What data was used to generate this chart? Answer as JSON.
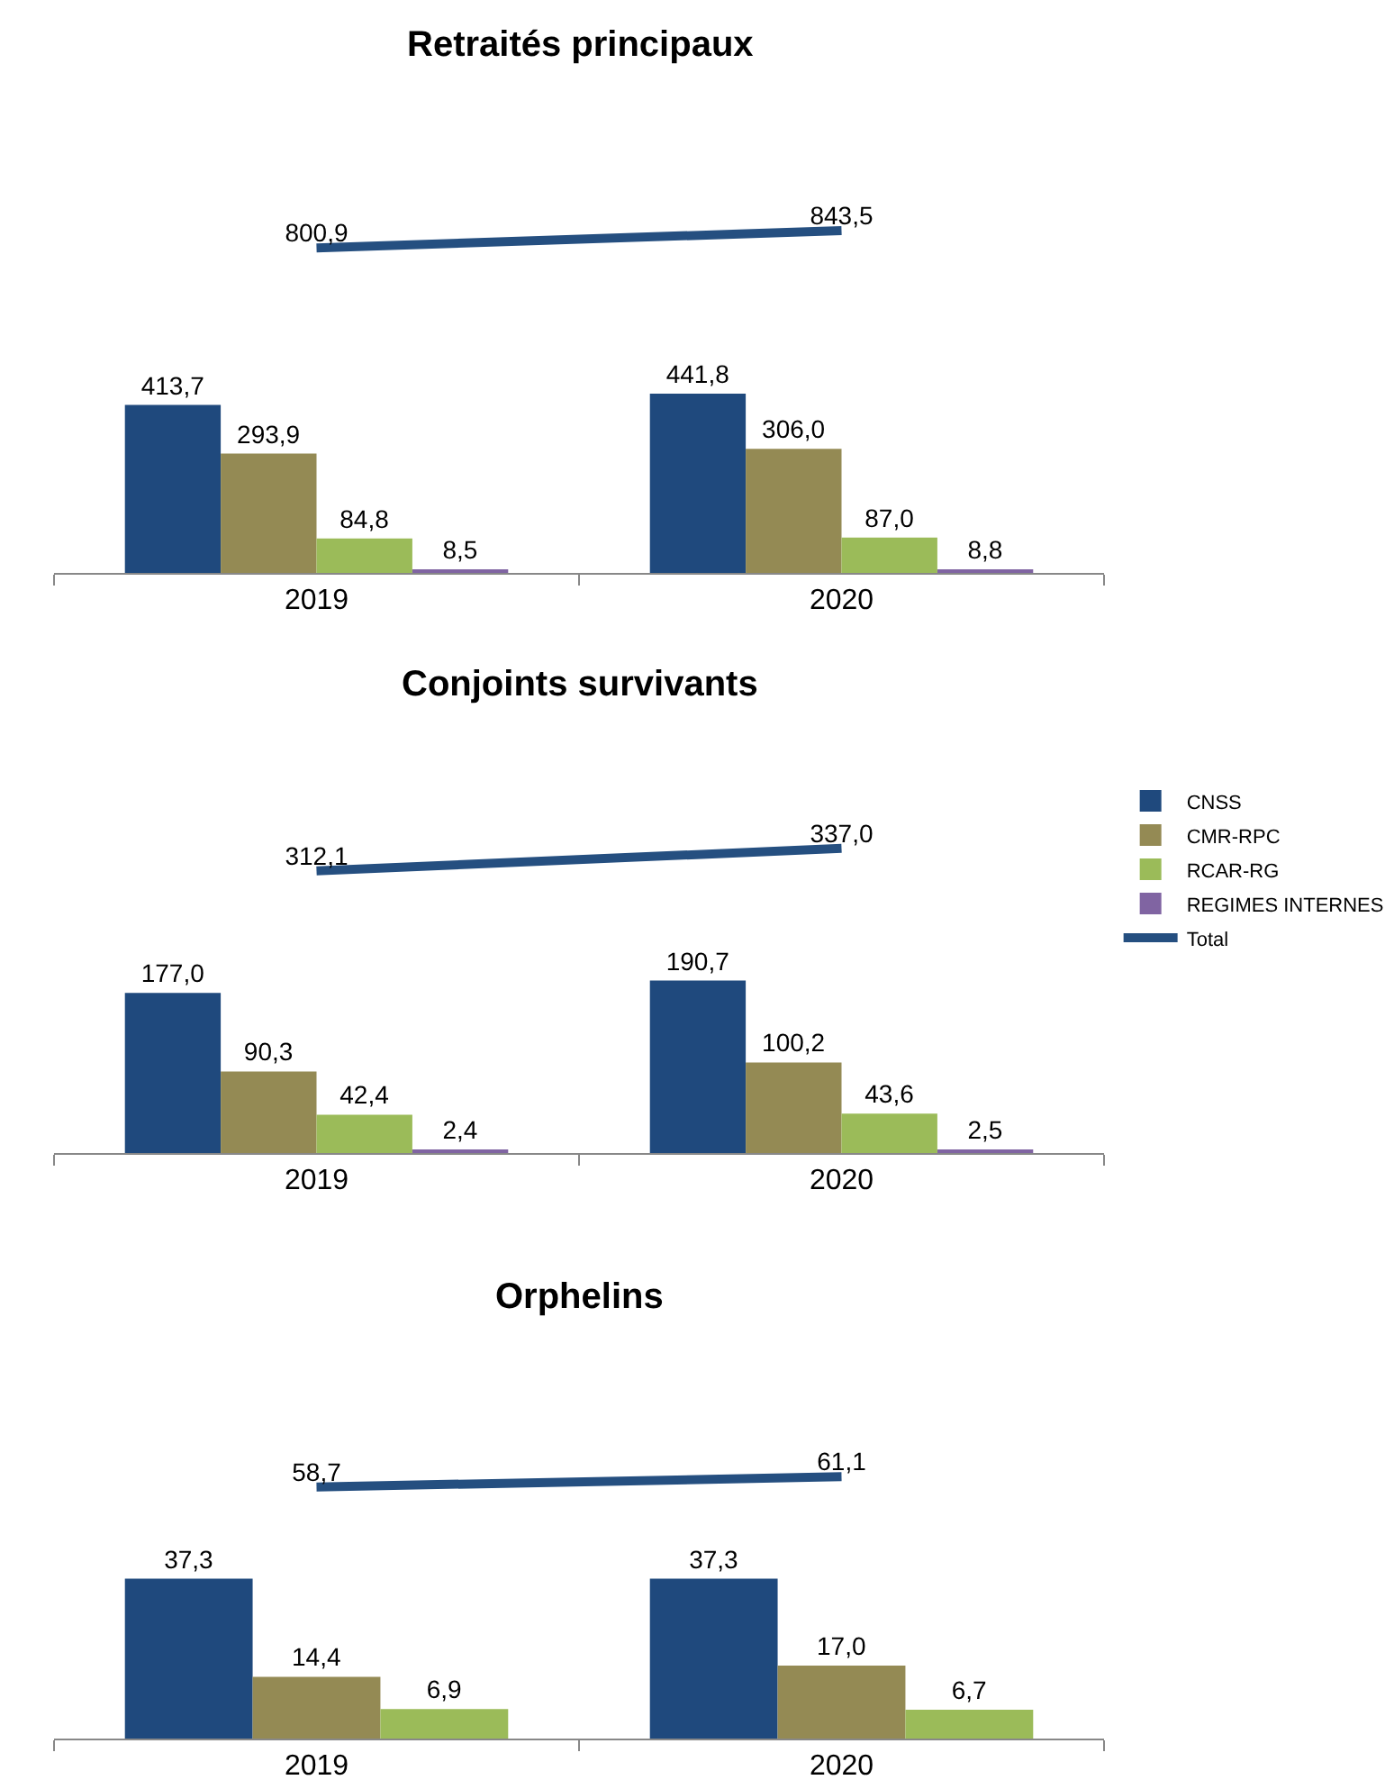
{
  "chart_data": [
    {
      "type": "bar",
      "title": "Retraités principaux",
      "categories": [
        "2019",
        "2020"
      ],
      "tick_labels": "x",
      "legend": "right",
      "series": [
        {
          "name": "CNSS",
          "color": "#1f497d",
          "values": [
            413.7,
            441.8
          ],
          "value_labels": [
            "413,7",
            "441,8"
          ]
        },
        {
          "name": "CMR-RPC",
          "color": "#948a54",
          "values": [
            293.9,
            306.0
          ],
          "value_labels": [
            "293,9",
            "306,0"
          ]
        },
        {
          "name": "RCAR-RG",
          "color": "#9bbb59",
          "values": [
            84.8,
            87.0
          ],
          "value_labels": [
            "84,8",
            "87,0"
          ]
        },
        {
          "name": "REGIMES INTERNES",
          "color": "#8064a2",
          "values": [
            8.5,
            8.8
          ],
          "value_labels": [
            "8,5",
            "8,8"
          ]
        },
        {
          "name": "Total",
          "color": "#254f80",
          "type": "line",
          "values": [
            800.9,
            843.5
          ],
          "value_labels": [
            "800,9",
            "843,5"
          ]
        }
      ]
    },
    {
      "type": "bar",
      "title": "Conjoints survivants",
      "categories": [
        "2019",
        "2020"
      ],
      "tick_labels": "x",
      "legend": "right",
      "series": [
        {
          "name": "CNSS",
          "color": "#1f497d",
          "values": [
            177.0,
            190.7
          ],
          "value_labels": [
            "177,0",
            "190,7"
          ]
        },
        {
          "name": "CMR-RPC",
          "color": "#948a54",
          "values": [
            90.3,
            100.2
          ],
          "value_labels": [
            "90,3",
            "100,2"
          ]
        },
        {
          "name": "RCAR-RG",
          "color": "#9bbb59",
          "values": [
            42.4,
            43.6
          ],
          "value_labels": [
            "42,4",
            "43,6"
          ]
        },
        {
          "name": "REGIMES INTERNES",
          "color": "#8064a2",
          "values": [
            2.4,
            2.5
          ],
          "value_labels": [
            "2,4",
            "2,5"
          ]
        },
        {
          "name": "Total",
          "color": "#254f80",
          "type": "line",
          "values": [
            312.1,
            337.0
          ],
          "value_labels": [
            "312,1",
            "337,0"
          ]
        }
      ]
    },
    {
      "type": "bar",
      "title": "Orphelins",
      "categories": [
        "2019",
        "2020"
      ],
      "tick_labels": "x",
      "legend": "right",
      "series": [
        {
          "name": "CNSS",
          "color": "#1f497d",
          "values": [
            37.3,
            37.3
          ],
          "value_labels": [
            "37,3",
            "37,3"
          ]
        },
        {
          "name": "CMR-RPC",
          "color": "#948a54",
          "values": [
            14.4,
            17.0
          ],
          "value_labels": [
            "14,4",
            "17,0"
          ]
        },
        {
          "name": "RCAR-RG",
          "color": "#9bbb59",
          "values": [
            6.9,
            6.7
          ],
          "value_labels": [
            "6,9",
            "6,7"
          ]
        },
        {
          "name": "Total",
          "color": "#254f80",
          "type": "line",
          "values": [
            58.7,
            61.1
          ],
          "value_labels": [
            "58,7",
            "61,1"
          ]
        }
      ]
    }
  ]
}
